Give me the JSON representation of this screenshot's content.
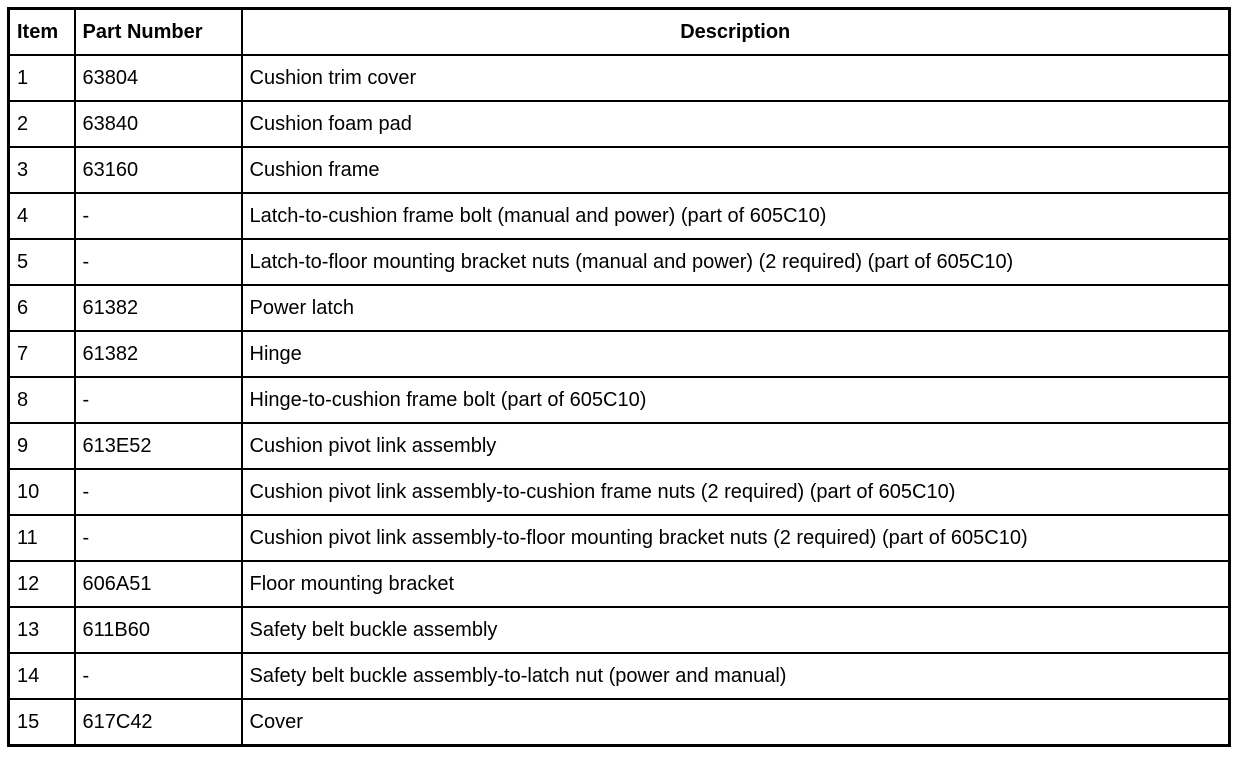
{
  "table": {
    "headers": [
      "Item",
      "Part Number",
      "Description"
    ],
    "rows": [
      [
        "1",
        "63804",
        "Cushion trim cover"
      ],
      [
        "2",
        "63840",
        "Cushion foam pad"
      ],
      [
        "3",
        "63160",
        "Cushion frame"
      ],
      [
        "4",
        "-",
        "Latch-to-cushion frame bolt (manual and power) (part of 605C10)"
      ],
      [
        "5",
        "-",
        "Latch-to-floor mounting bracket nuts (manual and power) (2 required) (part of 605C10)"
      ],
      [
        "6",
        "61382",
        "Power latch"
      ],
      [
        "7",
        "61382",
        "Hinge"
      ],
      [
        "8",
        "-",
        "Hinge-to-cushion frame bolt (part of 605C10)"
      ],
      [
        "9",
        "613E52",
        "Cushion pivot link assembly"
      ],
      [
        "10",
        "-",
        "Cushion pivot link assembly-to-cushion frame nuts (2 required) (part of 605C10)"
      ],
      [
        "11",
        "-",
        "Cushion pivot link assembly-to-floor mounting bracket nuts (2 required) (part of 605C10)"
      ],
      [
        "12",
        "606A51",
        "Floor mounting bracket"
      ],
      [
        "13",
        "611B60",
        "Safety belt buckle assembly"
      ],
      [
        "14",
        "-",
        "Safety belt buckle assembly-to-latch nut (power and manual)"
      ],
      [
        "15",
        "617C42",
        "Cover"
      ]
    ]
  }
}
